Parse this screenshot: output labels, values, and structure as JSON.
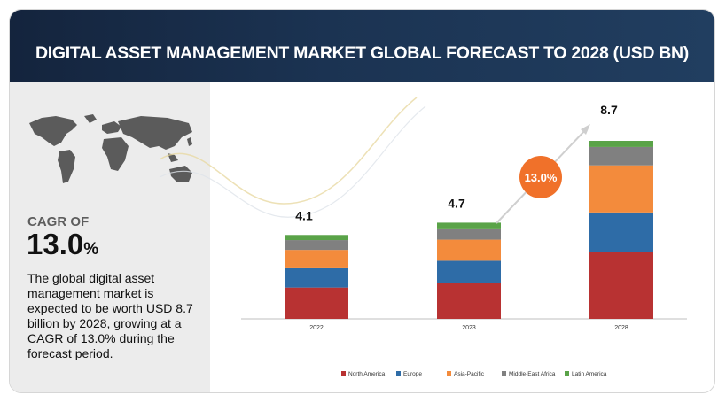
{
  "header": {
    "title": "DIGITAL ASSET MANAGEMENT MARKET GLOBAL FORECAST TO 2028 (USD BN)"
  },
  "sidebar": {
    "cagr_label": "CAGR OF",
    "cagr_value": "13.0",
    "cagr_unit": "%",
    "description": "The global digital asset management market is expected to be worth USD 8.7 billion by 2028, growing at a CAGR of 13.0% during the forecast period."
  },
  "colors": {
    "north_america": "#b83232",
    "europe": "#2e6ca7",
    "asia_pacific": "#f38b3c",
    "middle_east_africa": "#808080",
    "latin_america": "#5aa348",
    "cagr_badge": "#f0712a",
    "header_bg": "#1b3352"
  },
  "icons": {
    "map": "world-map-icon",
    "arrow": "growth-arrow-icon"
  },
  "chart_data": {
    "type": "bar",
    "stacked": true,
    "categories": [
      "2022",
      "2023",
      "2028"
    ],
    "totals": [
      "4.1",
      "4.7",
      "8.7"
    ],
    "total_values": [
      4.1,
      4.7,
      8.7
    ],
    "series": [
      {
        "name": "North America",
        "color": "#b83232",
        "values": [
          1.53,
          1.76,
          3.25
        ]
      },
      {
        "name": "Europe",
        "color": "#2e6ca7",
        "values": [
          0.94,
          1.08,
          1.95
        ]
      },
      {
        "name": "Asia-Pacific",
        "color": "#f38b3c",
        "values": [
          0.9,
          1.03,
          2.3
        ]
      },
      {
        "name": "Middle-East Africa",
        "color": "#808080",
        "values": [
          0.48,
          0.55,
          0.9
        ]
      },
      {
        "name": "Latin America",
        "color": "#5aa348",
        "values": [
          0.25,
          0.28,
          0.3
        ]
      }
    ],
    "annotation": {
      "cagr_text": "13.0%"
    },
    "legend_position": "bottom",
    "grid": false,
    "xlabel": "",
    "ylabel": "",
    "ylim": [
      0,
      9.5
    ]
  }
}
